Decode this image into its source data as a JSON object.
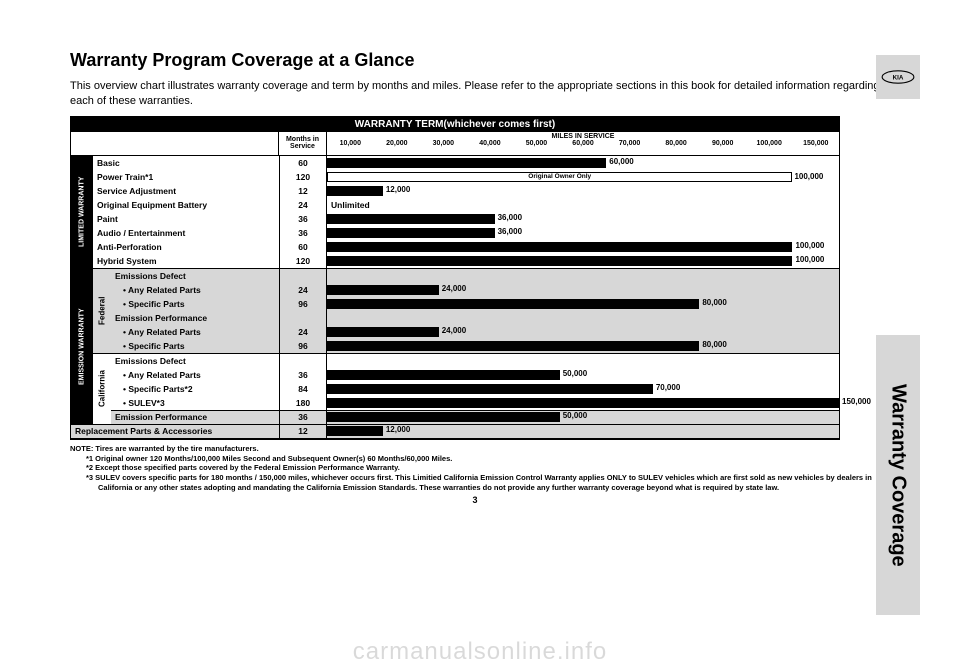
{
  "page": {
    "title": "Warranty Program Coverage at a Glance",
    "intro": "This overview chart illustrates warranty coverage and term by months and miles. Please refer to the appropriate sections in this book for detailed information regarding each of these warranties.",
    "side_tab": "Warranty Coverage",
    "page_number": "3",
    "watermark": "carmanualsonline.info"
  },
  "chart": {
    "header": "WARRANTY TERM(whichever comes first)",
    "months_label_1": "Months in",
    "months_label_2": "Service",
    "miles_label": "MILES IN SERVICE",
    "ticks": [
      "10,000",
      "20,000",
      "30,000",
      "40,000",
      "50,000",
      "60,000",
      "70,000",
      "80,000",
      "90,000",
      "100,000",
      "150,000"
    ],
    "max_tick": 11,
    "bar_color": "#000000",
    "bg_grey": "#d7d7d7"
  },
  "limited": {
    "cat_label": "LIMITED WARRANTY",
    "rows": [
      {
        "label": "Basic",
        "months": "60",
        "miles": "60,000",
        "units": 6
      },
      {
        "label": "Power Train*1",
        "months": "120",
        "miles": "100,000",
        "units": 10,
        "special": "hollow",
        "inner": "Original Owner Only"
      },
      {
        "label": "Service Adjustment",
        "months": "12",
        "miles": "12,000",
        "units": 1.2
      },
      {
        "label": "Original Equipment Battery",
        "months": "24",
        "miles": "Unlimited",
        "units": 0,
        "unlimited": true
      },
      {
        "label": "Paint",
        "months": "36",
        "miles": "36,000",
        "units": 3.6
      },
      {
        "label": "Audio / Entertainment",
        "months": "36",
        "miles": "36,000",
        "units": 3.6
      },
      {
        "label": "Anti-Perforation",
        "months": "60",
        "miles": "100,000",
        "units": 10
      },
      {
        "label": "Hybrid System",
        "months": "120",
        "miles": "100,000",
        "units": 10
      }
    ]
  },
  "emission": {
    "cat_label": "EMISSION WARRANTY",
    "federal": {
      "sub_label": "Federal",
      "groups": [
        {
          "head": "Emissions Defect",
          "rows": [
            {
              "label": "• Any Related Parts",
              "months": "24",
              "miles": "24,000",
              "units": 2.4
            },
            {
              "label": "• Specific Parts",
              "months": "96",
              "miles": "80,000",
              "units": 8
            }
          ]
        },
        {
          "head": "Emission Performance",
          "rows": [
            {
              "label": "• Any Related Parts",
              "months": "24",
              "miles": "24,000",
              "units": 2.4
            },
            {
              "label": "• Specific Parts",
              "months": "96",
              "miles": "80,000",
              "units": 8
            }
          ]
        }
      ]
    },
    "california": {
      "sub_label": "California",
      "groups": [
        {
          "head": "Emissions Defect",
          "rows": [
            {
              "label": "• Any Related Parts",
              "months": "36",
              "miles": "50,000",
              "units": 5
            },
            {
              "label": "• Specific Parts*2",
              "months": "84",
              "miles": "70,000",
              "units": 7
            },
            {
              "label": "• SULEV*3",
              "months": "180",
              "miles": "150,000",
              "units": 11
            }
          ]
        },
        {
          "head": "Emission Performance",
          "single": true,
          "months": "36",
          "miles": "50,000",
          "units": 5
        }
      ]
    }
  },
  "replacement": {
    "label": "Replacement Parts & Accessories",
    "months": "12",
    "miles": "12,000",
    "units": 1.2
  },
  "notes": {
    "head": "NOTE: Tires are warranted by the tire manufacturers.",
    "n1": "*1 Original owner 120 Months/100,000 Miles Second and Subsequent Owner(s) 60 Months/60,000 Miles.",
    "n2": "*2 Except those specified parts covered by the Federal Emission Performance Warranty.",
    "n3": "*3 SULEV covers specific parts for 180 months / 150,000 miles, whichever occurs first. This Limitied California Emission Control Warranty applies ONLY to SULEV vehicles which are first sold as new vehicles by dealers in California or any other states adopting and mandating the California Emission Standards. These warranties do not provide any further warranty coverage beyond what is required by state law."
  }
}
